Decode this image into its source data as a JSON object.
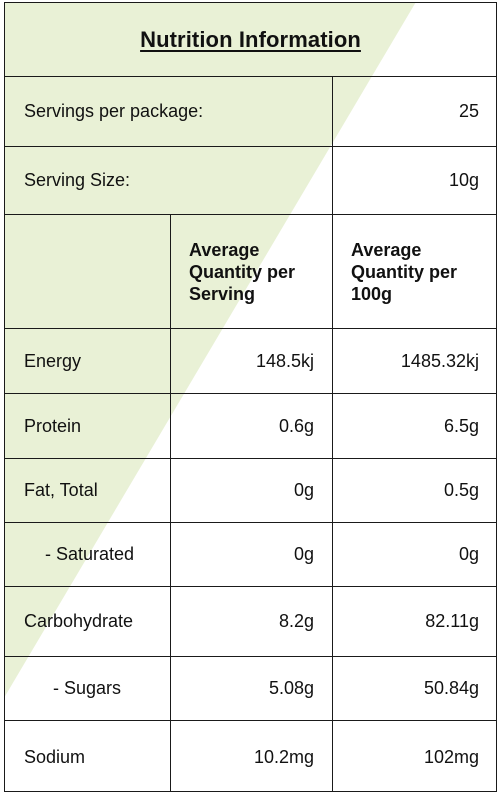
{
  "title": "Nutrition Information",
  "servings_per_package": {
    "label": "Servings per package:",
    "value": "25"
  },
  "serving_size": {
    "label": "Serving Size:",
    "value": "10g"
  },
  "column_headers": {
    "per_serving": "Average Quantity per Serving",
    "per_100g": "Average Quantity per 100g"
  },
  "nutrients": [
    {
      "name": "Energy",
      "per_serving": "148.5kj",
      "per_100g": "1485.32kj"
    },
    {
      "name": "Protein",
      "per_serving": "0.6g",
      "per_100g": "6.5g"
    },
    {
      "name": "Fat, Total",
      "per_serving": "0g",
      "per_100g": "0.5g"
    },
    {
      "name": "- Saturated",
      "per_serving": "0g",
      "per_100g": "0g"
    },
    {
      "name": "Carbohydrate",
      "per_serving": "8.2g",
      "per_100g": "82.11g"
    },
    {
      "name": "- Sugars",
      "per_serving": "5.08g",
      "per_100g": "50.84g"
    },
    {
      "name": "Sodium",
      "per_serving": "10.2mg",
      "per_100g": "102mg"
    }
  ],
  "colors": {
    "accent_band": "#e9f1d6",
    "border": "#1a1a1a",
    "text": "#111111"
  }
}
